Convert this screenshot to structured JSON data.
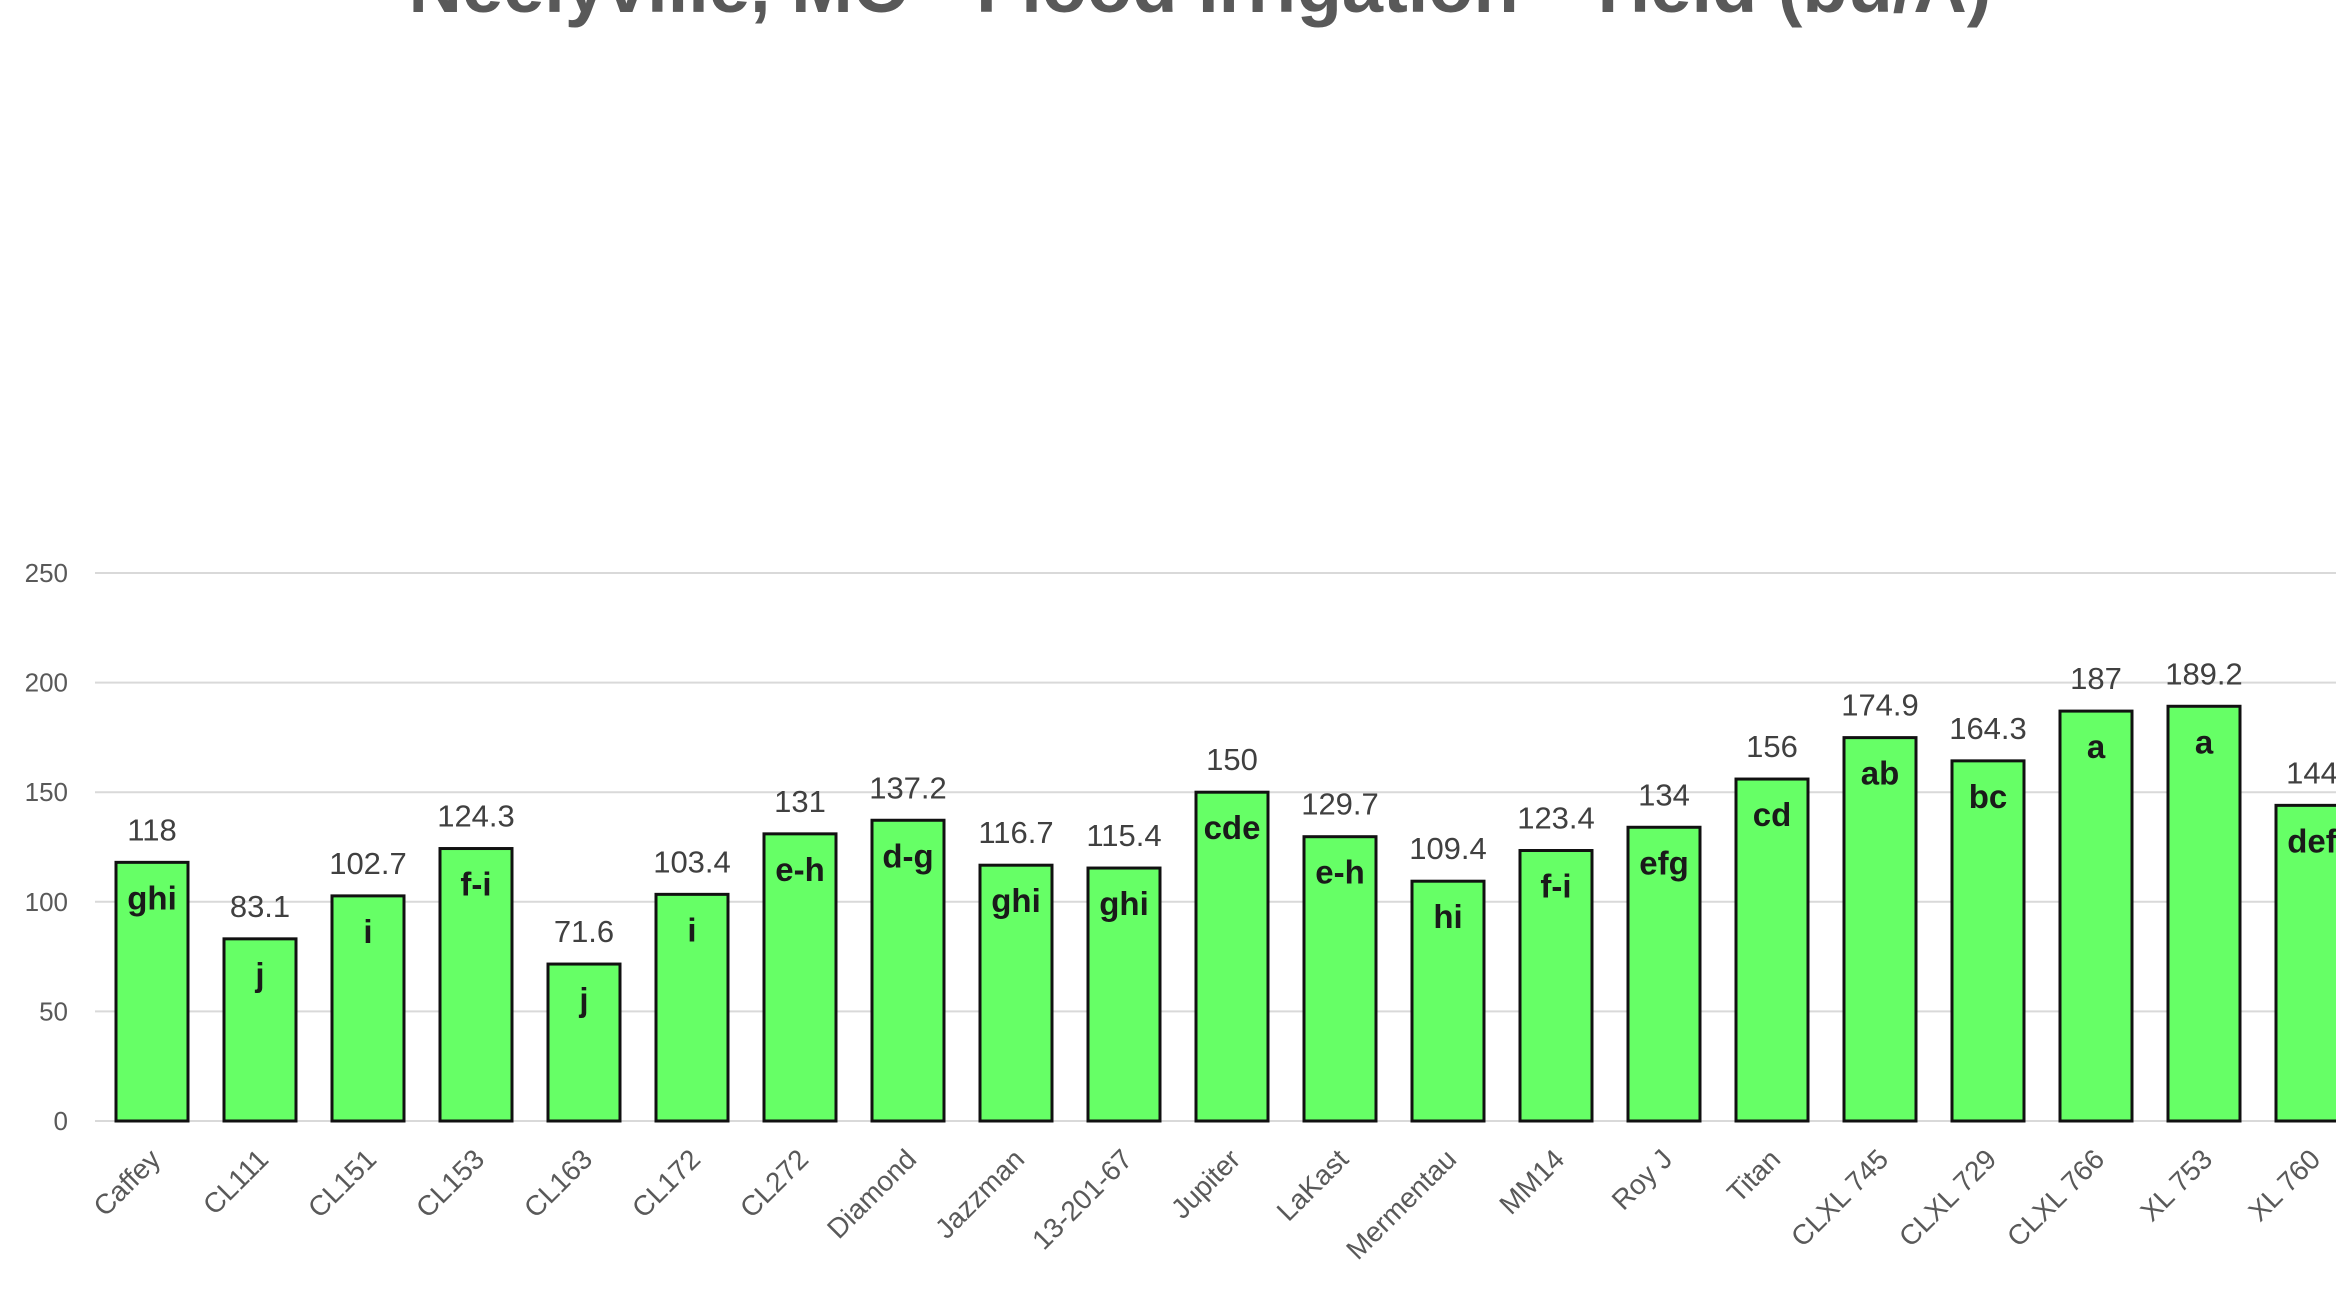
{
  "chart_data": {
    "type": "bar",
    "title": "Neelyville, MO - Flood Irrigation - Yield (bu/A)",
    "ylim": [
      0,
      250
    ],
    "yticks": [
      0,
      50,
      100,
      150,
      200,
      250
    ],
    "grid": true,
    "bar_color": "#66ff66",
    "categories": [
      "Caffey",
      "CL111",
      "CL151",
      "CL153",
      "CL163",
      "CL172",
      "CL272",
      "Diamond",
      "Jazzman",
      "13-201-67",
      "Jupiter",
      "LaKast",
      "Mermentau",
      "MM14",
      "Roy J",
      "Titan",
      "CLXL 745",
      "CLXL 729",
      "CLXL 766",
      "XL 753",
      "XL 760"
    ],
    "values": [
      118,
      83.1,
      102.7,
      124.3,
      71.6,
      103.4,
      131,
      137.2,
      116.7,
      115.4,
      150,
      129.7,
      109.4,
      123.4,
      134,
      156,
      174.9,
      164.3,
      187,
      189.2,
      144
    ],
    "value_labels": [
      "118",
      "83.1",
      "102.7",
      "124.3",
      "71.6",
      "103.4",
      "131",
      "137.2",
      "116.7",
      "115.4",
      "150",
      "129.7",
      "109.4",
      "123.4",
      "134",
      "156",
      "174.9",
      "164.3",
      "187",
      "189.2",
      "144"
    ],
    "significance_letters": [
      "ghi",
      "j",
      "i",
      "f-i",
      "j",
      "i",
      "e-h",
      "d-g",
      "ghi",
      "ghi",
      "cde",
      "e-h",
      "hi",
      "f-i",
      "efg",
      "cd",
      "ab",
      "bc",
      "a",
      "a",
      "def"
    ]
  }
}
